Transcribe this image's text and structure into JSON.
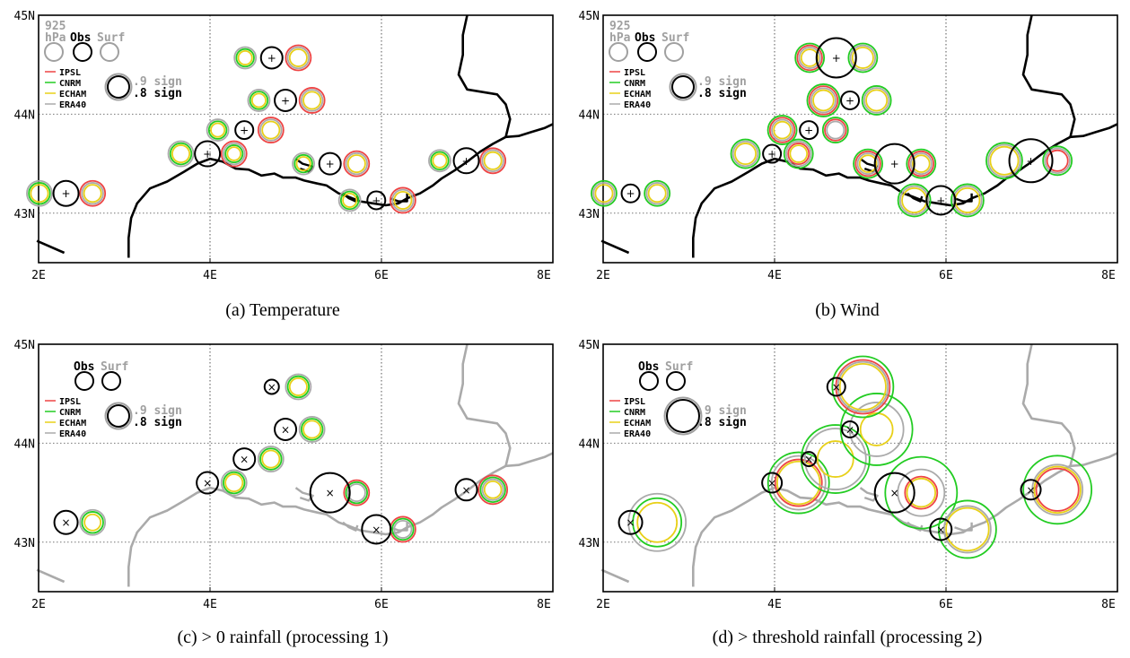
{
  "colors": {
    "IPSL": "#ee4444",
    "CNRM": "#22cc22",
    "ECHAM": "#e8d018",
    "ERA40": "#aaaaaa",
    "obs": "#000000",
    "coast_dark": "#000000",
    "coast_light": "#aaaaaa",
    "grid": "#888888",
    "muted_text": "#a0a0a0"
  },
  "panels": [
    {
      "id": "a",
      "caption": "(a) Temperature",
      "x_ticks": [
        "2E",
        "4E",
        "6E",
        "8E"
      ],
      "y_ticks": [
        "45N",
        "44N",
        "43N"
      ],
      "legend": {
        "level_top": "925",
        "level_bottom": "hPa",
        "obs": "Obs",
        "surf": "Surf",
        "models": [
          "IPSL",
          "CNRM",
          "ECHAM",
          "ERA40"
        ],
        "sig9": ".9 sign",
        "sig8": ".8 sign"
      },
      "coast": "dark",
      "obs_marker": "+",
      "stations": [
        {
          "lon": 2.32,
          "lat": 43.2,
          "r": 14,
          "ring": [
            {
              "dx": -0.31,
              "r": 14,
              "c": [
                "ERA40",
                "CNRM",
                "ECHAM"
              ]
            },
            {
              "dx": 0.31,
              "r": 14,
              "c": [
                "IPSL",
                "ERA40",
                "ECHAM"
              ]
            }
          ]
        },
        {
          "lon": 3.97,
          "lat": 43.6,
          "r": 14,
          "ring": [
            {
              "dx": -0.31,
              "r": 14,
              "c": [
                "ERA40",
                "CNRM",
                "ECHAM"
              ]
            },
            {
              "dx": 0.31,
              "r": 14,
              "c": [
                "IPSL",
                "ERA40",
                "CNRM",
                "ECHAM"
              ]
            }
          ]
        },
        {
          "lon": 4.4,
          "lat": 43.84,
          "r": 10,
          "ring": [
            {
              "dx": -0.31,
              "r": 12,
              "c": [
                "ERA40",
                "CNRM",
                "ECHAM"
              ]
            },
            {
              "dx": 0.31,
              "r": 14,
              "c": [
                "IPSL",
                "ERA40",
                "ECHAM"
              ]
            }
          ]
        },
        {
          "lon": 4.88,
          "lat": 44.14,
          "r": 12,
          "ring": [
            {
              "dx": -0.31,
              "r": 12,
              "c": [
                "ERA40",
                "CNRM",
                "ECHAM"
              ]
            },
            {
              "dx": 0.31,
              "r": 14,
              "c": [
                "IPSL",
                "ERA40",
                "ECHAM"
              ]
            }
          ]
        },
        {
          "lon": 4.72,
          "lat": 44.57,
          "r": 12,
          "ring": [
            {
              "dx": -0.31,
              "r": 12,
              "c": [
                "ERA40",
                "CNRM",
                "ECHAM"
              ]
            },
            {
              "dx": 0.31,
              "r": 14,
              "c": [
                "IPSL",
                "ERA40",
                "ECHAM"
              ]
            }
          ]
        },
        {
          "lon": 5.4,
          "lat": 43.5,
          "r": 12,
          "ring": [
            {
              "dx": -0.31,
              "r": 12,
              "c": [
                "ERA40",
                "CNRM",
                "ECHAM"
              ]
            },
            {
              "dx": 0.31,
              "r": 14,
              "c": [
                "IPSL",
                "ERA40",
                "ECHAM"
              ]
            }
          ]
        },
        {
          "lon": 5.94,
          "lat": 43.13,
          "r": 10,
          "ring": [
            {
              "dx": -0.31,
              "r": 12,
              "c": [
                "ERA40",
                "CNRM",
                "ECHAM"
              ]
            },
            {
              "dx": 0.31,
              "r": 14,
              "c": [
                "IPSL",
                "ERA40",
                "ECHAM"
              ]
            }
          ]
        },
        {
          "lon": 6.99,
          "lat": 43.53,
          "r": 14,
          "ring": [
            {
              "dx": -0.31,
              "r": 12,
              "c": [
                "ERA40",
                "CNRM",
                "ECHAM"
              ]
            },
            {
              "dx": 0.31,
              "r": 14,
              "c": [
                "IPSL",
                "ERA40",
                "ECHAM"
              ]
            }
          ]
        }
      ]
    },
    {
      "id": "b",
      "caption": "(b) Wind",
      "x_ticks": [
        "2E",
        "4E",
        "6E",
        "8E"
      ],
      "y_ticks": [
        "45N",
        "44N",
        "43N"
      ],
      "legend": {
        "level_top": "925",
        "level_bottom": "hPa",
        "obs": "Obs",
        "surf": "Surf",
        "models": [
          "IPSL",
          "CNRM",
          "ECHAM",
          "ERA40"
        ],
        "sig9": ".9 sign",
        "sig8": ".8 sign"
      },
      "coast": "dark",
      "obs_marker": "+",
      "stations": [
        {
          "lon": 2.32,
          "lat": 43.2,
          "r": 10,
          "ring": [
            {
              "dx": -0.31,
              "r": 14,
              "c": [
                "CNRM",
                "ERA40",
                "ECHAM"
              ]
            },
            {
              "dx": 0.31,
              "r": 14,
              "c": [
                "CNRM",
                "ERA40",
                "ECHAM"
              ]
            }
          ]
        },
        {
          "lon": 3.97,
          "lat": 43.6,
          "r": 10,
          "ring": [
            {
              "dx": -0.31,
              "r": 16,
              "c": [
                "CNRM",
                "ERA40",
                "ECHAM"
              ]
            },
            {
              "dx": 0.31,
              "r": 16,
              "c": [
                "CNRM",
                "ERA40",
                "IPSL",
                "ECHAM"
              ]
            }
          ]
        },
        {
          "lon": 4.4,
          "lat": 43.84,
          "r": 10,
          "ring": [
            {
              "dx": -0.31,
              "r": 16,
              "c": [
                "CNRM",
                "IPSL",
                "ERA40",
                "ECHAM"
              ]
            },
            {
              "dx": 0.31,
              "r": 14,
              "c": [
                "CNRM",
                "IPSL",
                "ERA40"
              ]
            }
          ]
        },
        {
          "lon": 4.88,
          "lat": 44.14,
          "r": 10,
          "ring": [
            {
              "dx": -0.31,
              "r": 18,
              "c": [
                "CNRM",
                "IPSL",
                "ERA40",
                "ECHAM"
              ]
            },
            {
              "dx": 0.31,
              "r": 16,
              "c": [
                "CNRM",
                "ERA40",
                "ECHAM"
              ]
            }
          ]
        },
        {
          "lon": 4.72,
          "lat": 44.57,
          "r": 22,
          "ring": [
            {
              "dx": -0.31,
              "r": 16,
              "c": [
                "CNRM",
                "IPSL",
                "ERA40",
                "ECHAM"
              ]
            },
            {
              "dx": 0.31,
              "r": 16,
              "c": [
                "CNRM",
                "ERA40",
                "ECHAM"
              ]
            }
          ]
        },
        {
          "lon": 5.4,
          "lat": 43.5,
          "r": 22,
          "ring": [
            {
              "dx": -0.31,
              "r": 16,
              "c": [
                "CNRM",
                "IPSL",
                "ERA40",
                "ECHAM"
              ]
            },
            {
              "dx": 0.31,
              "r": 16,
              "c": [
                "CNRM",
                "IPSL",
                "ERA40",
                "ECHAM"
              ]
            }
          ]
        },
        {
          "lon": 5.94,
          "lat": 43.13,
          "r": 16,
          "ring": [
            {
              "dx": -0.31,
              "r": 18,
              "c": [
                "CNRM",
                "ERA40",
                "ECHAM"
              ]
            },
            {
              "dx": 0.31,
              "r": 18,
              "c": [
                "CNRM",
                "ERA40",
                "ECHAM"
              ]
            }
          ]
        },
        {
          "lon": 6.99,
          "lat": 43.53,
          "r": 24,
          "ring": [
            {
              "dx": -0.31,
              "r": 20,
              "c": [
                "CNRM",
                "ERA40",
                "ECHAM"
              ]
            },
            {
              "dx": 0.31,
              "r": 16,
              "c": [
                "CNRM",
                "ERA40",
                "IPSL"
              ]
            }
          ]
        }
      ]
    },
    {
      "id": "c",
      "caption": "(c) > 0 rainfall (processing 1)",
      "x_ticks": [
        "2E",
        "4E",
        "6E",
        "8E"
      ],
      "y_ticks": [
        "45N",
        "44N",
        "43N"
      ],
      "legend": {
        "level_top": "",
        "level_bottom": "",
        "obs": "Obs",
        "surf": "Surf",
        "models": [
          "IPSL",
          "CNRM",
          "ECHAM",
          "ERA40"
        ],
        "sig9": ".9 sign",
        "sig8": ".8 sign"
      },
      "coast": "light",
      "obs_marker": "×",
      "stations": [
        {
          "lon": 2.32,
          "lat": 43.2,
          "r": 13,
          "ring": [
            {
              "dx": 0.31,
              "r": 14,
              "c": [
                "ERA40",
                "CNRM"
              ]
            },
            {
              "dx": 0.31,
              "r": 9,
              "c": [
                "ECHAM"
              ]
            }
          ]
        },
        {
          "lon": 3.97,
          "lat": 43.6,
          "r": 12,
          "ring": [
            {
              "dx": 0.31,
              "r": 14,
              "c": [
                "ERA40",
                "CNRM",
                "ECHAM"
              ]
            }
          ]
        },
        {
          "lon": 4.4,
          "lat": 43.84,
          "r": 12,
          "ring": [
            {
              "dx": 0.31,
              "r": 14,
              "c": [
                "ERA40",
                "CNRM",
                "ECHAM"
              ]
            }
          ]
        },
        {
          "lon": 4.88,
          "lat": 44.14,
          "r": 12,
          "ring": [
            {
              "dx": 0.31,
              "r": 14,
              "c": [
                "ERA40",
                "CNRM",
                "ECHAM"
              ]
            }
          ]
        },
        {
          "lon": 4.72,
          "lat": 44.57,
          "r": 8,
          "ring": [
            {
              "dx": 0.31,
              "r": 14,
              "c": [
                "ERA40",
                "CNRM",
                "ECHAM"
              ]
            }
          ]
        },
        {
          "lon": 5.4,
          "lat": 43.5,
          "r": 22,
          "ring": [
            {
              "dx": 0.31,
              "r": 14,
              "c": [
                "IPSL",
                "CNRM",
                "ERA40"
              ]
            }
          ]
        },
        {
          "lon": 5.94,
          "lat": 43.13,
          "r": 16,
          "ring": [
            {
              "dx": 0.31,
              "r": 14,
              "c": [
                "IPSL",
                "CNRM",
                "ERA40"
              ]
            }
          ]
        },
        {
          "lon": 6.99,
          "lat": 43.53,
          "r": 12,
          "ring": [
            {
              "dx": 0.31,
              "r": 16,
              "c": [
                "IPSL",
                "CNRM",
                "ERA40",
                "ECHAM"
              ]
            }
          ]
        }
      ]
    },
    {
      "id": "d",
      "caption": "(d) > threshold rainfall (processing 2)",
      "x_ticks": [
        "2E",
        "4E",
        "6E",
        "8E"
      ],
      "y_ticks": [
        "45N",
        "44N",
        "43N"
      ],
      "legend": {
        "level_top": "",
        "level_bottom": "",
        "obs": "Obs",
        "surf": "Surf",
        "models": [
          "IPSL",
          "CNRM",
          "ECHAM",
          "ERA40"
        ],
        "sig9": ".9 sign",
        "sig8": ".8 sign"
      },
      "coast": "light",
      "obs_marker": "×",
      "stations": [
        {
          "lon": 2.32,
          "lat": 43.2,
          "r": 13,
          "ring": [
            {
              "dx": 0.31,
              "r": 32,
              "c": [
                "ERA40"
              ]
            },
            {
              "dx": 0.31,
              "r": 27,
              "c": [
                "CNRM"
              ]
            },
            {
              "dx": 0.31,
              "r": 22,
              "c": [
                "ECHAM"
              ]
            }
          ]
        },
        {
          "lon": 3.97,
          "lat": 43.6,
          "r": 11,
          "ring": [
            {
              "dx": 0.31,
              "r": 34,
              "c": [
                "CNRM"
              ]
            },
            {
              "dx": 0.31,
              "r": 26,
              "c": [
                "IPSL",
                "ECHAM"
              ]
            },
            {
              "dx": 0.31,
              "r": 30,
              "c": [
                "ERA40"
              ]
            }
          ]
        },
        {
          "lon": 4.4,
          "lat": 43.84,
          "r": 8,
          "ring": [
            {
              "dx": 0.31,
              "r": 38,
              "c": [
                "CNRM"
              ]
            },
            {
              "dx": 0.31,
              "r": 34,
              "c": [
                "ERA40"
              ]
            },
            {
              "dx": 0.31,
              "r": 20,
              "c": [
                "ECHAM"
              ]
            }
          ]
        },
        {
          "lon": 4.88,
          "lat": 44.14,
          "r": 9,
          "ring": [
            {
              "dx": 0.31,
              "r": 40,
              "c": [
                "CNRM"
              ]
            },
            {
              "dx": 0.31,
              "r": 30,
              "c": [
                "ERA40"
              ]
            },
            {
              "dx": 0.31,
              "r": 18,
              "c": [
                "ECHAM"
              ]
            }
          ]
        },
        {
          "lon": 4.72,
          "lat": 44.57,
          "r": 10,
          "ring": [
            {
              "dx": 0.31,
              "r": 34,
              "c": [
                "CNRM"
              ]
            },
            {
              "dx": 0.31,
              "r": 30,
              "c": [
                "IPSL",
                "ERA40",
                "ECHAM"
              ]
            }
          ]
        },
        {
          "lon": 5.4,
          "lat": 43.5,
          "r": 22,
          "ring": [
            {
              "dx": 0.31,
              "r": 40,
              "c": [
                "CNRM"
              ]
            },
            {
              "dx": 0.31,
              "r": 26,
              "c": [
                "ERA40"
              ]
            },
            {
              "dx": 0.31,
              "r": 18,
              "c": [
                "IPSL",
                "ECHAM"
              ]
            }
          ]
        },
        {
          "lon": 5.94,
          "lat": 43.13,
          "r": 12,
          "ring": [
            {
              "dx": 0.31,
              "r": 32,
              "c": [
                "CNRM"
              ]
            },
            {
              "dx": 0.31,
              "r": 26,
              "c": [
                "ERA40",
                "ECHAM"
              ]
            }
          ]
        },
        {
          "lon": 6.99,
          "lat": 43.53,
          "r": 11,
          "ring": [
            {
              "dx": 0.31,
              "r": 38,
              "c": [
                "CNRM"
              ]
            },
            {
              "dx": 0.31,
              "r": 28,
              "c": [
                "ERA40",
                "ECHAM",
                "IPSL"
              ]
            }
          ]
        }
      ]
    }
  ]
}
